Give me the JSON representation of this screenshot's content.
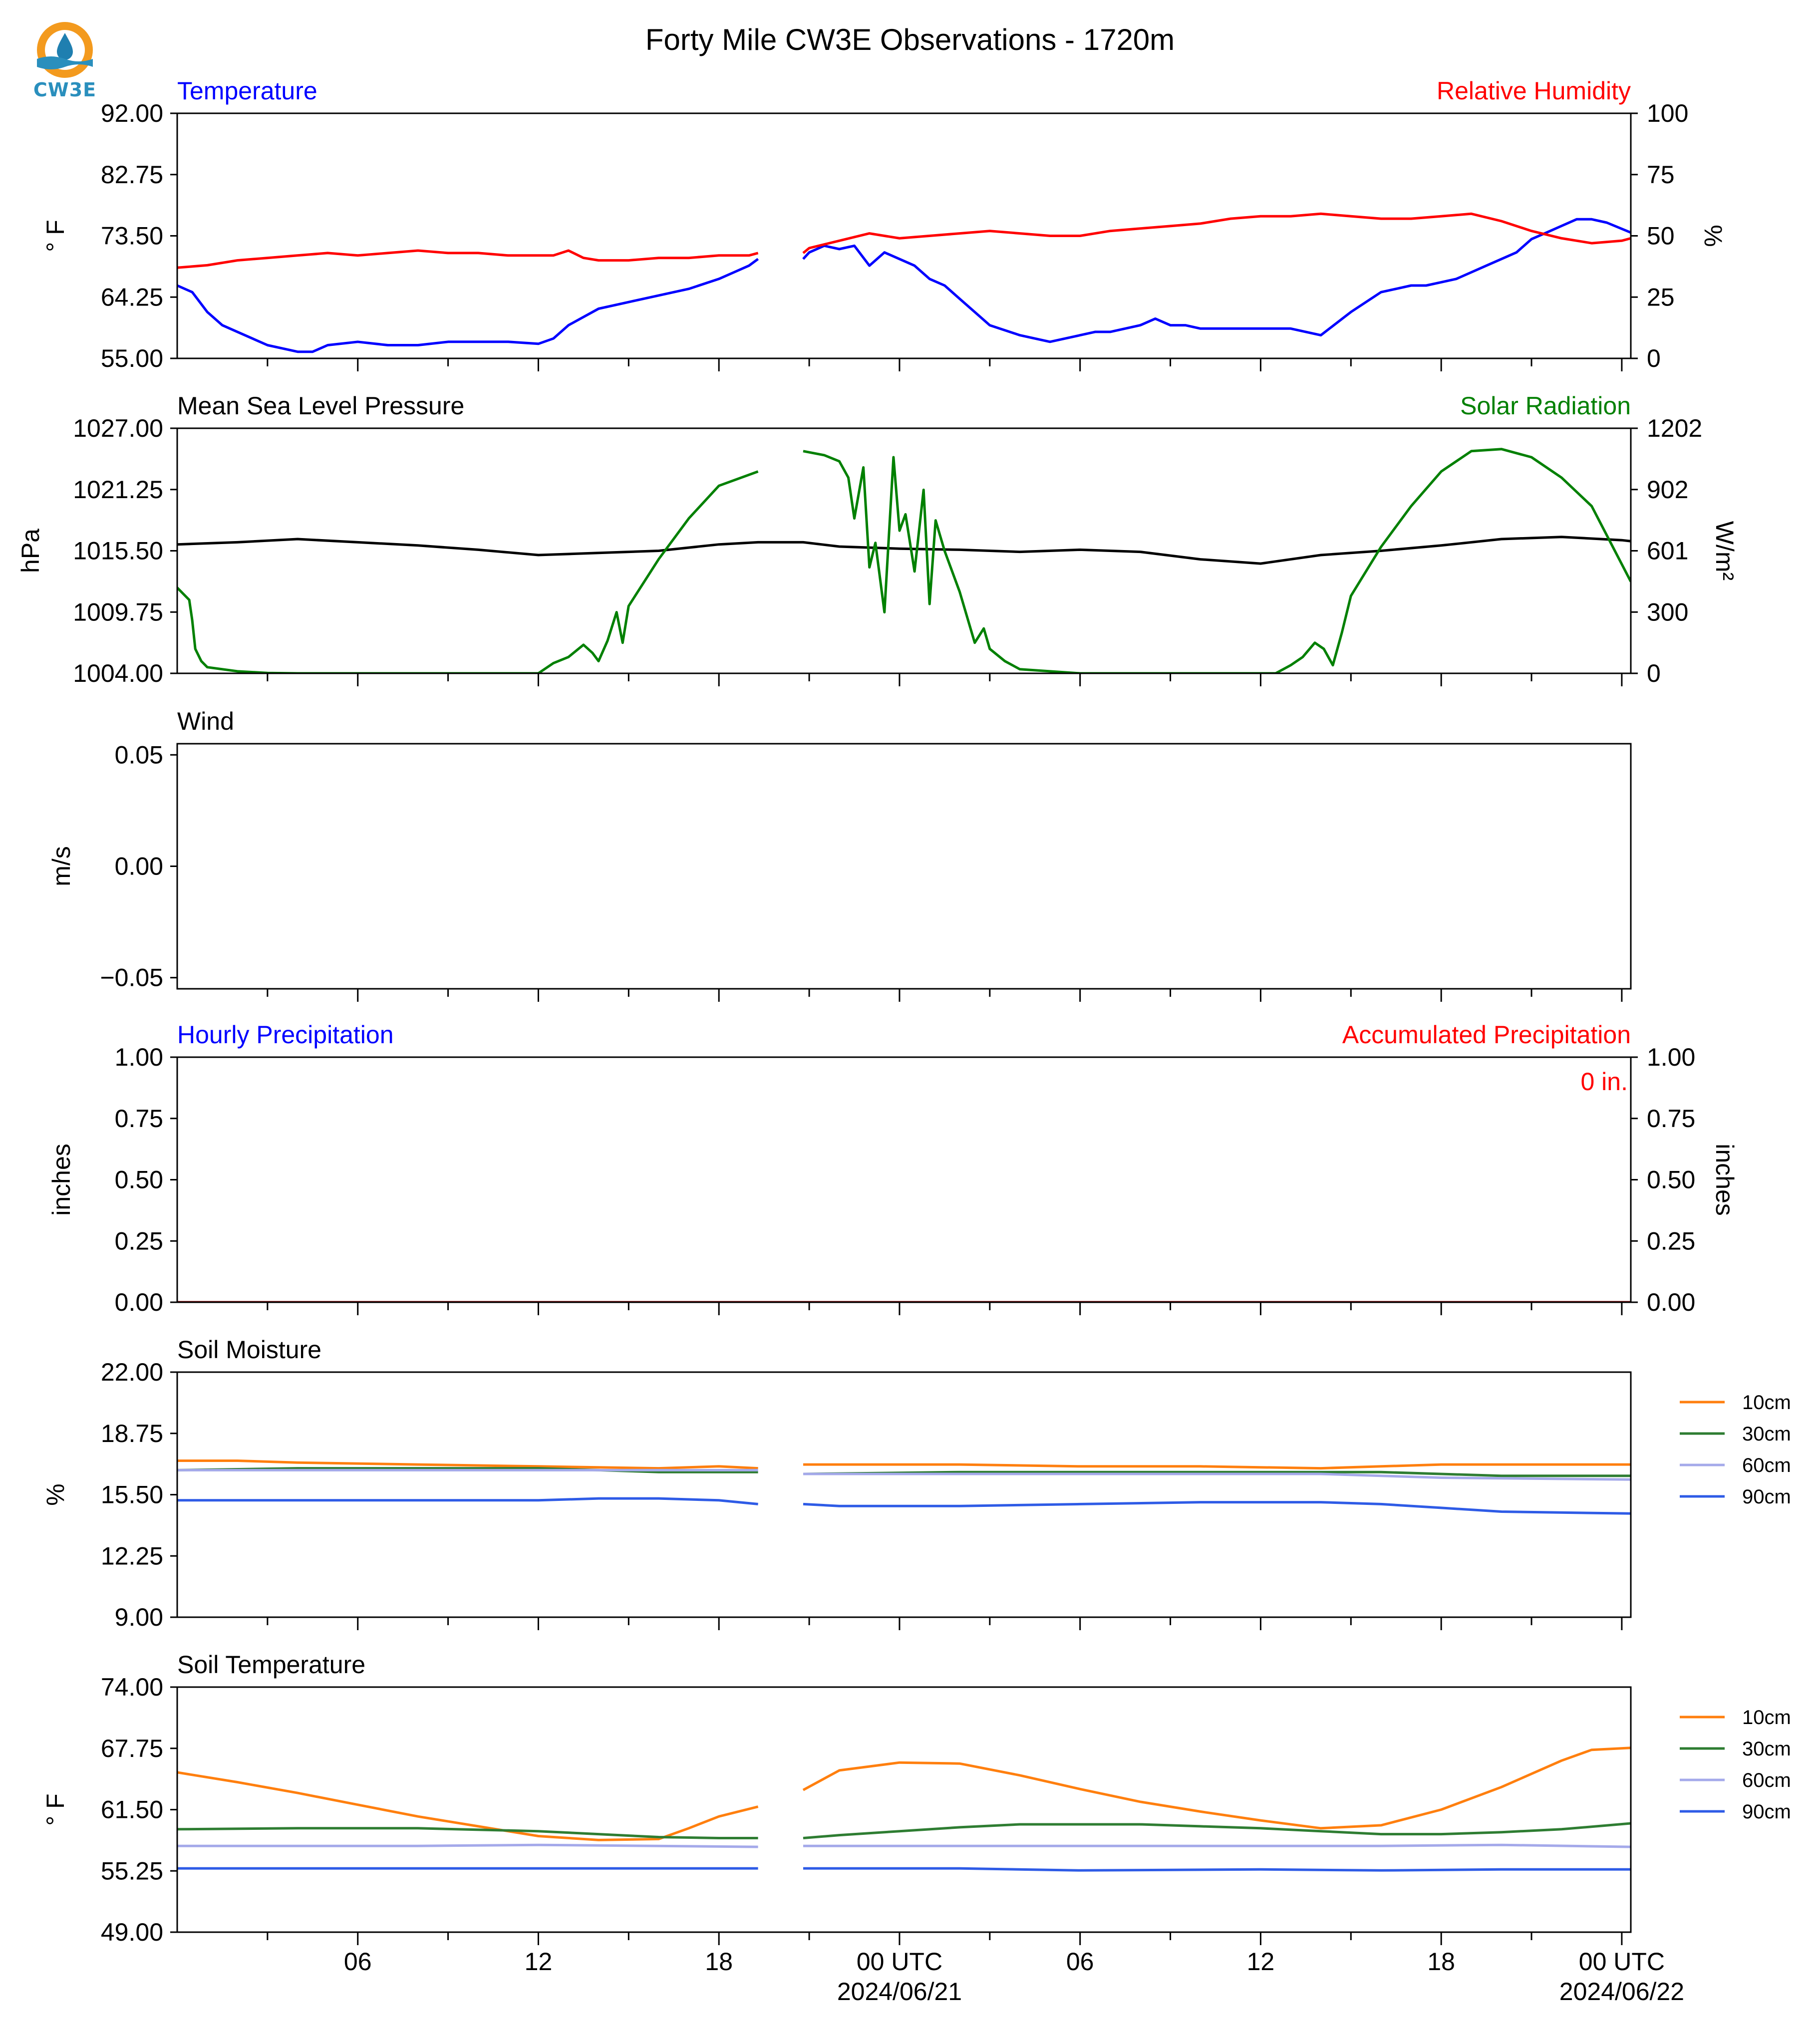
{
  "figure": {
    "title": "Forty Mile CW3E Observations - 1720m",
    "logo_text": "CW3E",
    "logo_colors": {
      "ring": "#f39a1e",
      "drop": "#1f7fb0",
      "water": "#2a8fbd",
      "text": "#2a8fbd"
    }
  },
  "chart_data": [
    {
      "type": "line",
      "title_left": "Temperature",
      "title_right": "Relative Humidity",
      "ylabel_left": "° F",
      "ylabel_right": "%",
      "ylim_left": [
        55.0,
        92.0
      ],
      "yticks_left": [
        "92.00",
        "82.75",
        "73.50",
        "64.25",
        "55.00"
      ],
      "ylim_right": [
        0,
        100
      ],
      "yticks_right": [
        "100",
        "75",
        "50",
        "25",
        "0"
      ],
      "series": [
        {
          "name": "Temperature",
          "axis": "left",
          "color": "#0000ff",
          "x": [
            0,
            0.5,
            1,
            1.5,
            2,
            2.5,
            3,
            3.5,
            4,
            4.5,
            5,
            6,
            7,
            8,
            9,
            10,
            11,
            12,
            12.5,
            13,
            14,
            15,
            16,
            17,
            18,
            18.5,
            19,
            19.3
          ],
          "y": [
            66,
            65,
            62,
            60,
            59,
            58,
            57,
            56.5,
            56,
            56,
            57,
            57.5,
            57,
            57,
            57.5,
            57.5,
            57.5,
            57.2,
            58,
            60,
            62.5,
            63.5,
            64.5,
            65.5,
            67,
            68,
            69,
            70
          ]
        },
        {
          "name": "Temperature",
          "axis": "left",
          "color": "#0000ff",
          "x": [
            20.8,
            21,
            21.5,
            22,
            22.5,
            23,
            23.5,
            24,
            24.5,
            25,
            25.5,
            26,
            26.5,
            27,
            28,
            29,
            30,
            30.5,
            31,
            32,
            32.5,
            33,
            33.5,
            34,
            35,
            36,
            37,
            38,
            39,
            40,
            41,
            41.5,
            42,
            42.5,
            43,
            43.5,
            44,
            44.5,
            45,
            45.5,
            46,
            46.5,
            47,
            47.5,
            48.3
          ],
          "y": [
            70,
            71,
            72,
            71.5,
            72,
            69,
            71,
            70,
            69,
            67,
            66,
            64,
            62,
            60,
            58.5,
            57.5,
            58.5,
            59,
            59,
            60,
            61,
            60,
            60,
            59.5,
            59.5,
            59.5,
            59.5,
            58.5,
            62,
            65,
            66,
            66,
            66.5,
            67,
            68,
            69,
            70,
            71,
            73,
            74,
            75,
            76,
            76,
            75.5,
            74
          ]
        },
        {
          "name": "Relative Humidity",
          "axis": "right",
          "color": "#ff0000",
          "x": [
            0,
            1,
            2,
            3,
            4,
            5,
            6,
            7,
            8,
            9,
            10,
            11,
            12,
            12.5,
            13,
            13.5,
            14,
            15,
            16,
            17,
            18,
            19,
            19.3
          ],
          "y": [
            37,
            38,
            40,
            41,
            42,
            43,
            42,
            43,
            44,
            43,
            43,
            42,
            42,
            42,
            44,
            41,
            40,
            40,
            41,
            41,
            42,
            42,
            43
          ]
        },
        {
          "name": "Relative Humidity",
          "axis": "right",
          "color": "#ff0000",
          "x": [
            20.8,
            21,
            22,
            23,
            24,
            25,
            26,
            27,
            28,
            29,
            30,
            31,
            32,
            33,
            34,
            35,
            36,
            37,
            38,
            39,
            40,
            41,
            42,
            43,
            44,
            45,
            46,
            47,
            48,
            48.3
          ],
          "y": [
            43,
            45,
            48,
            51,
            49,
            50,
            51,
            52,
            51,
            50,
            50,
            52,
            53,
            54,
            55,
            57,
            58,
            58,
            59,
            58,
            57,
            57,
            58,
            59,
            56,
            52,
            49,
            47,
            48,
            49
          ]
        }
      ]
    },
    {
      "type": "line",
      "title_left": "Mean Sea Level Pressure",
      "title_right": "Solar Radiation",
      "ylabel_left": "hPa",
      "ylabel_right": "W/m²",
      "ylim_left": [
        1004.0,
        1027.0
      ],
      "yticks_left": [
        "1027.00",
        "1021.25",
        "1015.50",
        "1009.75",
        "1004.00"
      ],
      "ylim_right": [
        0,
        1202
      ],
      "yticks_right": [
        "1202",
        "902",
        "601",
        "300",
        "0"
      ],
      "series": [
        {
          "name": "Mean Sea Level Pressure",
          "axis": "left",
          "color": "#000000",
          "x": [
            0,
            2,
            4,
            6,
            8,
            10,
            12,
            14,
            16,
            18,
            19.3,
            20.8,
            22,
            24,
            26,
            28,
            30,
            32,
            34,
            36,
            38,
            40,
            42,
            44,
            46,
            48,
            48.3
          ],
          "y": [
            1016.1,
            1016.3,
            1016.6,
            1016.3,
            1016.0,
            1015.6,
            1015.1,
            1015.3,
            1015.5,
            1016.1,
            1016.3,
            1016.3,
            1015.9,
            1015.7,
            1015.6,
            1015.4,
            1015.6,
            1015.4,
            1014.7,
            1014.3,
            1015.1,
            1015.5,
            1016.0,
            1016.6,
            1016.8,
            1016.5,
            1016.4
          ]
        },
        {
          "name": "Solar Radiation",
          "axis": "right",
          "color": "#008000",
          "x": [
            0,
            0.4,
            0.5,
            0.6,
            0.8,
            1,
            2,
            3,
            4,
            6,
            8,
            10,
            12,
            12.2,
            12.5,
            13,
            13.5,
            13.8,
            14,
            14.3,
            14.6,
            14.8,
            15,
            16,
            17,
            18,
            19.3
          ],
          "y": [
            420,
            360,
            260,
            120,
            60,
            30,
            10,
            2,
            0,
            0,
            0,
            0,
            0,
            20,
            50,
            80,
            140,
            100,
            60,
            160,
            300,
            150,
            330,
            560,
            760,
            920,
            990
          ]
        },
        {
          "name": "Solar Radiation",
          "axis": "right",
          "color": "#008000",
          "x": [
            20.8,
            21.5,
            22,
            22.3,
            22.5,
            22.8,
            23,
            23.2,
            23.5,
            23.8,
            24,
            24.2,
            24.5,
            24.8,
            25,
            25.2,
            25.5,
            26,
            26.5,
            26.8,
            27,
            27.5,
            28,
            30,
            32,
            34,
            36,
            36.5,
            37,
            37.4,
            37.8,
            38.1,
            38.4,
            38.7,
            39,
            40,
            41,
            42,
            43,
            44,
            45,
            46,
            47,
            48.3
          ],
          "y": [
            1090,
            1070,
            1040,
            960,
            760,
            1010,
            520,
            640,
            300,
            1060,
            700,
            780,
            500,
            900,
            340,
            750,
            600,
            400,
            150,
            220,
            120,
            60,
            20,
            0,
            0,
            0,
            0,
            0,
            40,
            80,
            150,
            120,
            40,
            200,
            380,
            620,
            820,
            990,
            1090,
            1100,
            1060,
            960,
            820,
            450
          ]
        }
      ]
    },
    {
      "type": "line",
      "title_left": "Wind",
      "ylabel_left": "m/s",
      "ylim_left": [
        -0.055,
        0.055
      ],
      "yticks_left": [
        "0.05",
        "0.00",
        "−0.05"
      ],
      "series": []
    },
    {
      "type": "bar",
      "title_left": "Hourly Precipitation",
      "title_right": "Accumulated Precipitation",
      "annotation": "0 in.",
      "ylabel_left": "inches",
      "ylabel_right": "inches",
      "ylim_left": [
        0,
        1.0
      ],
      "yticks_left": [
        "1.00",
        "0.75",
        "0.50",
        "0.25",
        "0.00"
      ],
      "ylim_right": [
        0,
        1.0
      ],
      "yticks_right": [
        "1.00",
        "0.75",
        "0.50",
        "0.25",
        "0.00"
      ],
      "series": [
        {
          "name": "Accumulated Precipitation",
          "axis": "left",
          "color": "#8b0000",
          "x": [
            0,
            48.3
          ],
          "y": [
            0,
            0
          ]
        }
      ]
    },
    {
      "type": "line",
      "title_left": "Soil Moisture",
      "ylabel_left": "%",
      "ylim_left": [
        9.0,
        22.0
      ],
      "yticks_left": [
        "22.00",
        "18.75",
        "15.50",
        "12.25",
        "9.00"
      ],
      "legend": [
        "10cm",
        "30cm",
        "60cm",
        "90cm"
      ],
      "series": [
        {
          "name": "10cm",
          "color": "#ff7f0e",
          "x": [
            0,
            2,
            4,
            8,
            12,
            16,
            18,
            19.3
          ],
          "y": [
            17.3,
            17.3,
            17.2,
            17.1,
            17.0,
            16.9,
            17.0,
            16.9
          ]
        },
        {
          "name": "10cm",
          "color": "#ff7f0e",
          "x": [
            20.8,
            26,
            30,
            34,
            38,
            40,
            42,
            48.3
          ],
          "y": [
            17.1,
            17.1,
            17.0,
            17.0,
            16.9,
            17.0,
            17.1,
            17.1
          ]
        },
        {
          "name": "30cm",
          "color": "#2e7d32",
          "x": [
            0,
            4,
            8,
            12,
            16,
            19.3
          ],
          "y": [
            16.8,
            16.9,
            16.9,
            16.9,
            16.7,
            16.7
          ]
        },
        {
          "name": "30cm",
          "color": "#2e7d32",
          "x": [
            20.8,
            26,
            30,
            34,
            38,
            40,
            42,
            44,
            48.3
          ],
          "y": [
            16.6,
            16.7,
            16.7,
            16.7,
            16.7,
            16.7,
            16.6,
            16.5,
            16.5
          ]
        },
        {
          "name": "60cm",
          "color": "#a4a9ea",
          "x": [
            0,
            19.3
          ],
          "y": [
            16.8,
            16.8
          ]
        },
        {
          "name": "60cm",
          "color": "#a4a9ea",
          "x": [
            20.8,
            30,
            38,
            42,
            48.3
          ],
          "y": [
            16.6,
            16.6,
            16.6,
            16.4,
            16.3
          ]
        },
        {
          "name": "90cm",
          "color": "#2e5be6",
          "x": [
            0,
            4,
            8,
            12,
            14,
            16,
            18,
            19.3
          ],
          "y": [
            15.2,
            15.2,
            15.2,
            15.2,
            15.3,
            15.3,
            15.2,
            15.0
          ]
        },
        {
          "name": "90cm",
          "color": "#2e5be6",
          "x": [
            20.8,
            22,
            26,
            30,
            34,
            38,
            40,
            42,
            44,
            48.3
          ],
          "y": [
            15.0,
            14.9,
            14.9,
            15.0,
            15.1,
            15.1,
            15.0,
            14.8,
            14.6,
            14.5
          ]
        }
      ]
    },
    {
      "type": "line",
      "title_left": "Soil Temperature",
      "ylabel_left": "° F",
      "ylim_left": [
        49.0,
        74.0
      ],
      "yticks_left": [
        "74.00",
        "67.75",
        "61.50",
        "55.25",
        "49.00"
      ],
      "legend": [
        "10cm",
        "30cm",
        "60cm",
        "90cm"
      ],
      "series": [
        {
          "name": "10cm",
          "color": "#ff7f0e",
          "x": [
            0,
            2,
            4,
            6,
            8,
            10,
            12,
            14,
            16,
            17,
            18,
            19.3
          ],
          "y": [
            65.3,
            64.3,
            63.2,
            62.0,
            60.8,
            59.8,
            58.8,
            58.4,
            58.5,
            59.6,
            60.8,
            61.8
          ]
        },
        {
          "name": "10cm",
          "color": "#ff7f0e",
          "x": [
            20.8,
            22,
            24,
            26,
            28,
            30,
            32,
            34,
            36,
            38,
            40,
            42,
            44,
            46,
            47,
            48.3
          ],
          "y": [
            63.5,
            65.5,
            66.3,
            66.2,
            65.0,
            63.6,
            62.3,
            61.3,
            60.4,
            59.6,
            59.9,
            61.5,
            63.8,
            66.5,
            67.6,
            67.8
          ]
        },
        {
          "name": "30cm",
          "color": "#2e7d32",
          "x": [
            0,
            4,
            8,
            12,
            14,
            16,
            18,
            19.3
          ],
          "y": [
            59.5,
            59.6,
            59.6,
            59.3,
            59.0,
            58.7,
            58.6,
            58.6
          ]
        },
        {
          "name": "30cm",
          "color": "#2e7d32",
          "x": [
            20.8,
            22,
            24,
            26,
            28,
            32,
            34,
            36,
            38,
            40,
            42,
            44,
            46,
            48.3
          ],
          "y": [
            58.6,
            58.9,
            59.3,
            59.7,
            60.0,
            60.0,
            59.8,
            59.6,
            59.3,
            59.0,
            59.0,
            59.2,
            59.5,
            60.1
          ]
        },
        {
          "name": "60cm",
          "color": "#a4a9ea",
          "x": [
            0,
            8,
            12,
            19.3
          ],
          "y": [
            57.8,
            57.8,
            57.9,
            57.7
          ]
        },
        {
          "name": "60cm",
          "color": "#a4a9ea",
          "x": [
            20.8,
            30,
            36,
            40,
            44,
            48.3
          ],
          "y": [
            57.8,
            57.8,
            57.8,
            57.8,
            57.9,
            57.7
          ]
        },
        {
          "name": "90cm",
          "color": "#2e5be6",
          "x": [
            0,
            19.3
          ],
          "y": [
            55.5,
            55.5
          ]
        },
        {
          "name": "90cm",
          "color": "#2e5be6",
          "x": [
            20.8,
            26,
            30,
            36,
            40,
            44,
            48.3
          ],
          "y": [
            55.5,
            55.5,
            55.3,
            55.4,
            55.3,
            55.4,
            55.4
          ]
        }
      ]
    }
  ],
  "x_axis": {
    "domain_hours": [
      0,
      48.3
    ],
    "ticks": [
      {
        "hour": 6,
        "label": "06",
        "date": ""
      },
      {
        "hour": 12,
        "label": "12",
        "date": ""
      },
      {
        "hour": 18,
        "label": "18",
        "date": ""
      },
      {
        "hour": 24,
        "label": "00 UTC",
        "date": "2024/06/21"
      },
      {
        "hour": 30,
        "label": "06",
        "date": ""
      },
      {
        "hour": 36,
        "label": "12",
        "date": ""
      },
      {
        "hour": 42,
        "label": "18",
        "date": ""
      },
      {
        "hour": 48,
        "label": "00 UTC",
        "date": "2024/06/22"
      }
    ]
  }
}
